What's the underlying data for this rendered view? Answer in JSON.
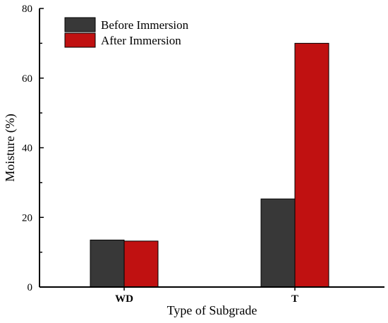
{
  "chart_data": {
    "type": "bar",
    "title": "",
    "xlabel": "Type of Subgrade",
    "ylabel": "Moisture (%)",
    "ylim": [
      0,
      80
    ],
    "yticks": [
      0,
      20,
      40,
      60,
      80
    ],
    "categories": [
      "WD",
      "T"
    ],
    "series": [
      {
        "name": "Before Immersion",
        "color": "#383838",
        "values": [
          13.5,
          25.3
        ]
      },
      {
        "name": "After Immersion",
        "color": "#c01111",
        "values": [
          13.2,
          70.0
        ]
      }
    ],
    "legend_position": "top-left",
    "grid": false
  }
}
